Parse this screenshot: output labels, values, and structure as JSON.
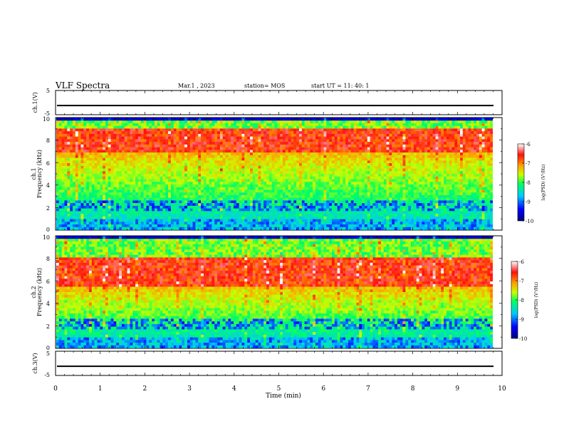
{
  "header": {
    "title": "VLF Spectra",
    "date": "Mar.1  , 2023",
    "station": "station= MOS",
    "start": "start  UT  =   11: 40: 1"
  },
  "colorbar": {
    "label": "log(PSD) (V²/Hz)",
    "ticks": [
      "-6",
      "-7",
      "-8",
      "-9",
      "-10"
    ],
    "range": [
      -10,
      -6
    ]
  },
  "chart_data": [
    {
      "type": "line",
      "panel": "ch1-voltage",
      "ylabel": "ch.1(V)",
      "ylim": [
        -5,
        5
      ],
      "ytick_labels": [
        "5",
        "-5"
      ],
      "x": [
        0,
        10
      ],
      "series": [
        {
          "values": [
            -1.2,
            -1.2
          ]
        }
      ]
    },
    {
      "type": "heatmap",
      "panel": "ch1-spectrogram",
      "ylabel": "ch.1\nFrequency (kHz)",
      "ylim": [
        0,
        10
      ],
      "ytick_labels": [
        "0",
        "2",
        "4",
        "6",
        "8",
        "10"
      ],
      "xlim": [
        0,
        10
      ],
      "spectral_peak_khz": [
        7,
        9
      ],
      "strong_band_khz": [
        [
          8.0,
          9.0
        ]
      ]
    },
    {
      "type": "heatmap",
      "panel": "ch2-spectrogram",
      "ylabel": "ch.2\nFrequency (kHz)",
      "ylim": [
        0,
        10
      ],
      "ytick_labels": [
        "0",
        "2",
        "4",
        "6",
        "8",
        "10"
      ],
      "xlim": [
        0,
        10
      ],
      "spectral_peak_khz": [
        5.5,
        8.2
      ],
      "strong_band_khz": [
        [
          5.5,
          8.0
        ]
      ]
    },
    {
      "type": "line",
      "panel": "ch3-voltage",
      "ylabel": "ch.3(V)",
      "ylim": [
        -5,
        5
      ],
      "ytick_labels": [
        "5",
        "-5"
      ],
      "x": [
        0,
        10
      ],
      "series": [
        {
          "values": [
            -1.2,
            -1.2
          ]
        }
      ]
    }
  ],
  "xaxis": {
    "label": "Time  (min)",
    "range": [
      0,
      10
    ],
    "ticks": [
      "0",
      "1",
      "2",
      "3",
      "4",
      "5",
      "6",
      "7",
      "8",
      "9",
      "10"
    ]
  }
}
